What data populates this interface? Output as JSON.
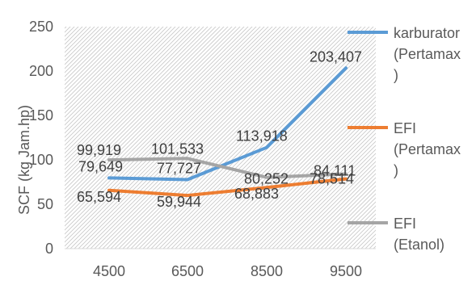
{
  "chart_data": {
    "type": "line",
    "categories": [
      "4500",
      "6500",
      "8500",
      "9500"
    ],
    "series": [
      {
        "name": "karburator (Pertamax)",
        "color": "#5B9BD5",
        "values": [
          79.649,
          77.727,
          113.918,
          203.407
        ],
        "labels": [
          "79,649",
          "77,727",
          "113,918",
          "203,407"
        ]
      },
      {
        "name": "EFI (Pertamax)",
        "color": "#ED7D31",
        "values": [
          65.594,
          59.944,
          68.883,
          78.514
        ],
        "labels": [
          "65,594",
          "59,944",
          "68,883",
          "78,514"
        ]
      },
      {
        "name": "EFI (Etanol)",
        "color": "#A5A5A5",
        "values": [
          99.919,
          101.533,
          80.252,
          84.111
        ],
        "labels": [
          "99,919",
          "101,533",
          "80,252",
          "84,111"
        ]
      }
    ],
    "yticks": [
      "0",
      "50",
      "100",
      "150",
      "200",
      "250"
    ],
    "ylabel": "SCF (kg Jam.hp)",
    "xlabel": "",
    "title": "",
    "ylim": [
      0,
      250
    ],
    "grid": false,
    "plot_area_pattern": "diagonal-hatch",
    "legend_position": "right"
  },
  "legend": {
    "items": [
      {
        "lines": [
          "karburator",
          "(Pertamax",
          ")"
        ]
      },
      {
        "lines": [
          "EFI",
          "(Pertamax",
          ")"
        ]
      },
      {
        "lines": [
          "EFI",
          "(Etanol)"
        ]
      }
    ]
  }
}
